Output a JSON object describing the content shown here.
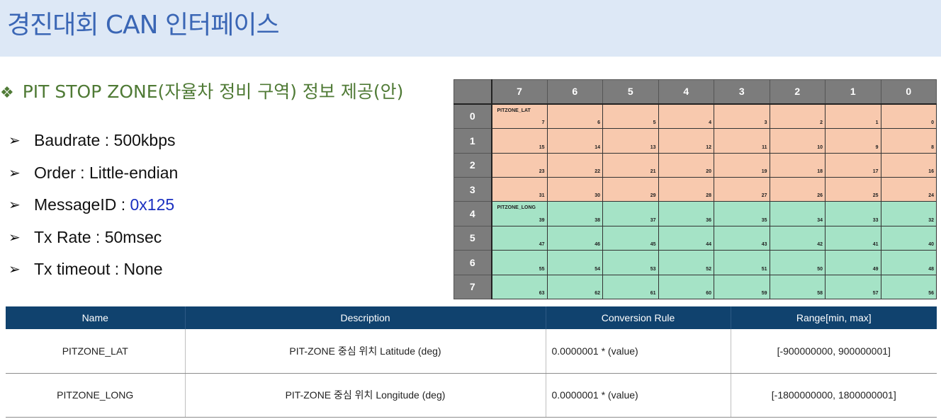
{
  "title": "경진대회 CAN 인터페이스",
  "section": {
    "bullet_icon": "diamond-bullet",
    "label": "PIT STOP ZONE(자율차 정비 구역) 정보 제공(안)"
  },
  "specs": [
    {
      "label": "Baudrate",
      "value": "500kbps"
    },
    {
      "label": "Order",
      "value": "Little-endian"
    },
    {
      "label": "MessageID",
      "value": "0x125",
      "highlight_color": "#1a2fc0"
    },
    {
      "label": "Tx Rate",
      "value": "50msec"
    },
    {
      "label": "Tx timeout",
      "value": "None"
    }
  ],
  "bit_layout": {
    "bit_columns": [
      "7",
      "6",
      "5",
      "4",
      "3",
      "2",
      "1",
      "0"
    ],
    "rows": [
      {
        "byte": "0",
        "signal": "PITZONE_LAT",
        "color": "#f8c9ae",
        "bits": [
          "7",
          "6",
          "5",
          "4",
          "3",
          "2",
          "1",
          "0"
        ]
      },
      {
        "byte": "1",
        "signal": "",
        "color": "#f8c9ae",
        "bits": [
          "15",
          "14",
          "13",
          "12",
          "11",
          "10",
          "9",
          "8"
        ]
      },
      {
        "byte": "2",
        "signal": "",
        "color": "#f8c9ae",
        "bits": [
          "23",
          "22",
          "21",
          "20",
          "19",
          "18",
          "17",
          "16"
        ]
      },
      {
        "byte": "3",
        "signal": "",
        "color": "#f8c9ae",
        "bits": [
          "31",
          "30",
          "29",
          "28",
          "27",
          "26",
          "25",
          "24"
        ]
      },
      {
        "byte": "4",
        "signal": "PITZONE_LONG",
        "color": "#a5e3c6",
        "bits": [
          "39",
          "38",
          "37",
          "36",
          "35",
          "34",
          "33",
          "32"
        ]
      },
      {
        "byte": "5",
        "signal": "",
        "color": "#a5e3c6",
        "bits": [
          "47",
          "46",
          "45",
          "44",
          "43",
          "42",
          "41",
          "40"
        ]
      },
      {
        "byte": "6",
        "signal": "",
        "color": "#a5e3c6",
        "bits": [
          "55",
          "54",
          "53",
          "52",
          "51",
          "50",
          "49",
          "48"
        ]
      },
      {
        "byte": "7",
        "signal": "",
        "color": "#a5e3c6",
        "bits": [
          "63",
          "62",
          "61",
          "60",
          "59",
          "58",
          "57",
          "56"
        ]
      }
    ]
  },
  "signal_table": {
    "headers": [
      "Name",
      "Description",
      "Conversion Rule",
      "Range[min, max]"
    ],
    "rows": [
      {
        "name": "PITZONE_LAT",
        "description": "PIT-ZONE 중심 위치 Latitude (deg)",
        "conversion": "0.0000001 * (value)",
        "range": "[-900000000, 900000001]"
      },
      {
        "name": "PITZONE_LONG",
        "description": "PIT-ZONE 중심 위치 Longitude (deg)",
        "conversion": "0.0000001 * (value)",
        "range": "[-1800000000, 1800000001]"
      }
    ]
  },
  "colors": {
    "header_bg": "#dde8f6",
    "title": "#3a66b5",
    "section": "#4f7a35",
    "table_header": "#10426e"
  }
}
